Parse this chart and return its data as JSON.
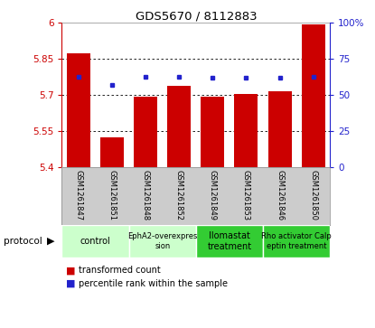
{
  "title": "GDS5670 / 8112883",
  "samples": [
    "GSM1261847",
    "GSM1261851",
    "GSM1261848",
    "GSM1261852",
    "GSM1261849",
    "GSM1261853",
    "GSM1261846",
    "GSM1261850"
  ],
  "bar_values": [
    5.875,
    5.525,
    5.695,
    5.74,
    5.695,
    5.705,
    5.715,
    5.995
  ],
  "percentile_values": [
    63,
    57,
    63,
    63,
    62,
    62,
    62,
    63
  ],
  "ylim_left": [
    5.4,
    6.0
  ],
  "ylim_right": [
    0,
    100
  ],
  "yticks_left": [
    5.4,
    5.55,
    5.7,
    5.85,
    6.0
  ],
  "ytick_labels_left": [
    "5.4",
    "5.55",
    "5.7",
    "5.85",
    "6"
  ],
  "yticks_right": [
    0,
    25,
    50,
    75,
    100
  ],
  "ytick_labels_right": [
    "0",
    "25",
    "50",
    "75",
    "100%"
  ],
  "bar_color": "#cc0000",
  "dot_color": "#2222cc",
  "bar_bottom": 5.4,
  "bar_width": 0.7,
  "protocols": [
    {
      "label": "control",
      "indices": [
        0,
        1
      ],
      "color": "#ccffcc",
      "text_size": 7
    },
    {
      "label": "EphA2-overexpres\nsion",
      "indices": [
        2,
        3
      ],
      "color": "#ccffcc",
      "text_size": 6
    },
    {
      "label": "Ilomastat\ntreatment",
      "indices": [
        4,
        5
      ],
      "color": "#33cc33",
      "text_size": 7
    },
    {
      "label": "Rho activator Calp\neptin treatment",
      "indices": [
        6,
        7
      ],
      "color": "#33cc33",
      "text_size": 6
    }
  ],
  "left_axis_color": "#cc0000",
  "right_axis_color": "#2222cc",
  "bg_color": "#ffffff",
  "sample_bg_color": "#cccccc"
}
